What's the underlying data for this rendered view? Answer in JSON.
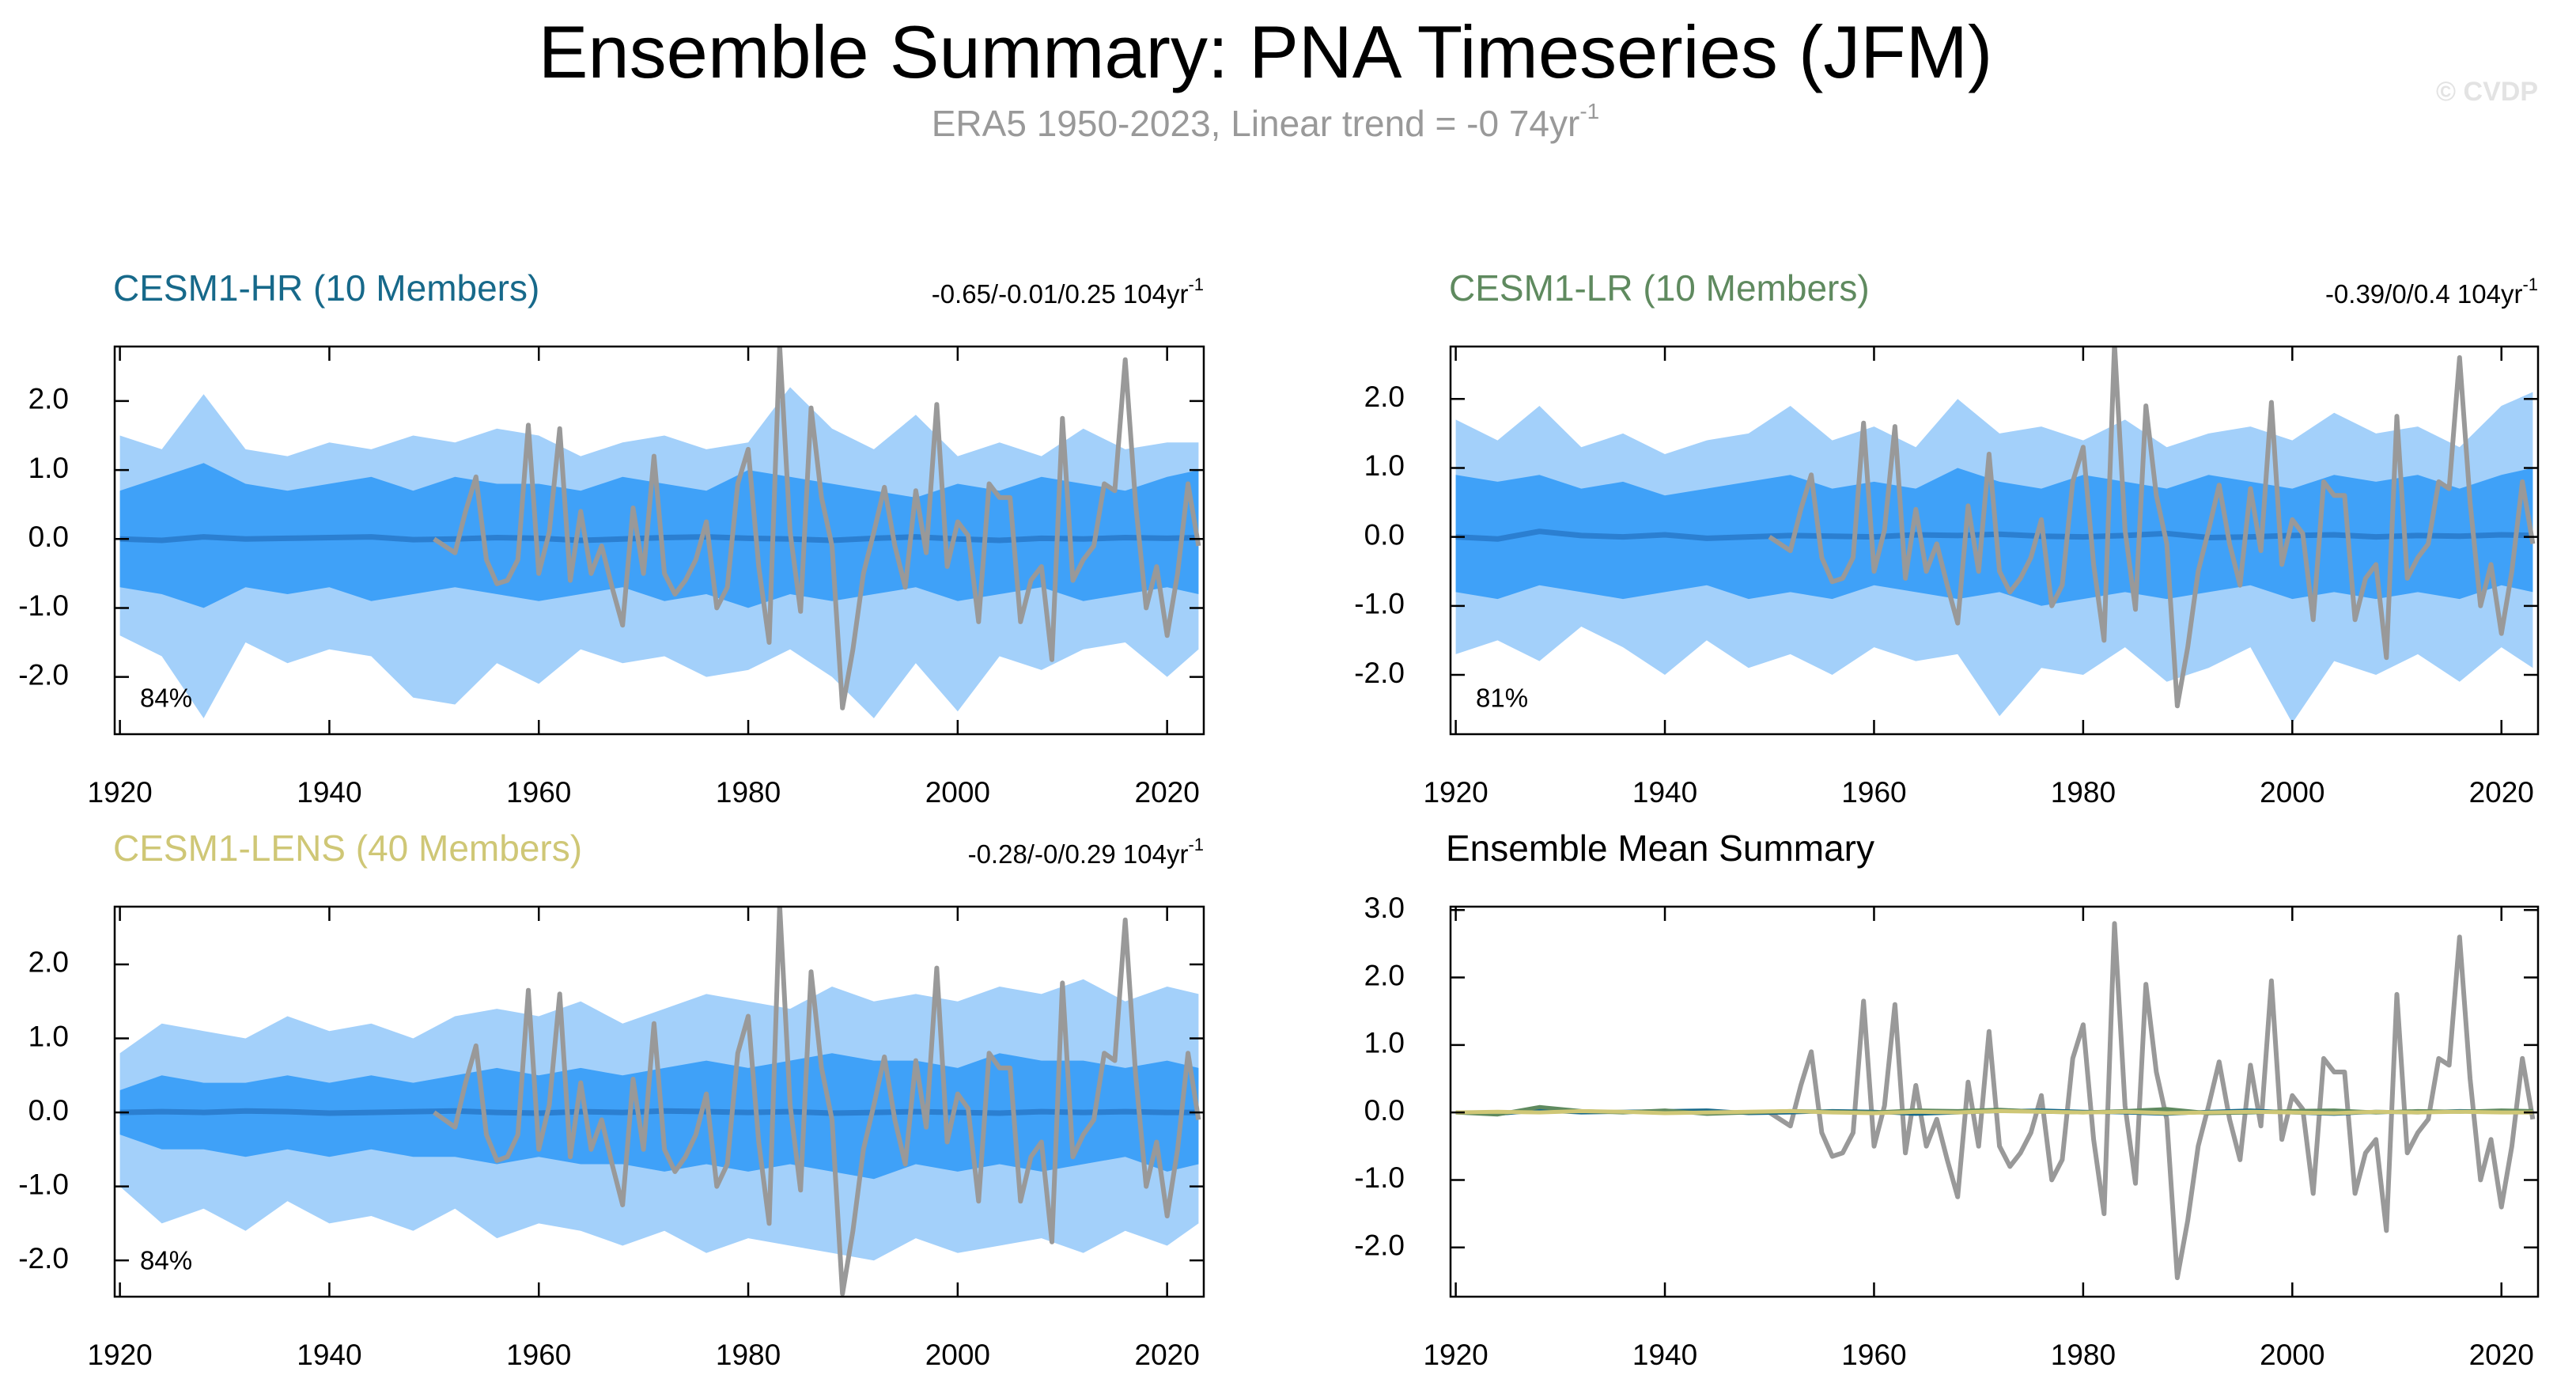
{
  "header": {
    "title": "Ensemble Summary: PNA Timeseries (JFM)",
    "subtitle": "ERA5 1950-2023, Linear trend = -0 74yr",
    "subtitle_exponent": "-1",
    "watermark": "© CVDP"
  },
  "style": {
    "outer": "#a3d0fa",
    "inner": "#3fa1f8",
    "mean": "#2b7fd1",
    "observations": "#999999"
  },
  "observations": {
    "x": [
      1950,
      1951,
      1952,
      1953,
      1954,
      1955,
      1956,
      1957,
      1958,
      1959,
      1960,
      1961,
      1962,
      1963,
      1964,
      1965,
      1966,
      1967,
      1968,
      1969,
      1970,
      1971,
      1972,
      1973,
      1974,
      1975,
      1976,
      1977,
      1978,
      1979,
      1980,
      1981,
      1982,
      1983,
      1984,
      1985,
      1986,
      1987,
      1988,
      1989,
      1990,
      1991,
      1992,
      1993,
      1994,
      1995,
      1996,
      1997,
      1998,
      1999,
      2000,
      2001,
      2002,
      2003,
      2004,
      2005,
      2006,
      2007,
      2008,
      2009,
      2010,
      2011,
      2012,
      2013,
      2014,
      2015,
      2016,
      2017,
      2018,
      2019,
      2020,
      2021,
      2022,
      2023
    ],
    "values": [
      0,
      -0.1,
      -0.2,
      0.4,
      0.9,
      -0.3,
      -0.65,
      -0.6,
      -0.3,
      1.65,
      -0.5,
      0.1,
      1.6,
      -0.6,
      0.4,
      -0.5,
      -0.1,
      -0.7,
      -1.25,
      0.45,
      -0.5,
      1.2,
      -0.5,
      -0.8,
      -0.6,
      -0.3,
      0.25,
      -1.0,
      -0.7,
      0.8,
      1.3,
      -0.4,
      -1.5,
      2.8,
      0.1,
      -1.05,
      1.9,
      0.6,
      -0.1,
      -2.45,
      -1.6,
      -0.5,
      0.1,
      0.75,
      -0.1,
      -0.7,
      0.7,
      -0.2,
      1.95,
      -0.4,
      0.25,
      0.05,
      -1.2,
      0.8,
      0.6,
      0.6,
      -1.2,
      -0.6,
      -0.4,
      -1.75,
      1.75,
      -0.6,
      -0.3,
      -0.1,
      0.8,
      0.7,
      2.6,
      0.5,
      -1.0,
      -0.4,
      -1.4,
      -0.5,
      0.8,
      -0.1
    ]
  },
  "chart_data": [
    {
      "type": "band",
      "title": "CESM1-HR (10 Members)",
      "title_color": "#17698a",
      "trend": "-0.65/-0.01/0.25 104yr",
      "trend_exponent": "-1",
      "percent_label": "84%",
      "x": [
        1920,
        1924,
        1928,
        1932,
        1936,
        1940,
        1944,
        1948,
        1952,
        1956,
        1960,
        1964,
        1968,
        1972,
        1976,
        1980,
        1984,
        1988,
        1992,
        1996,
        2000,
        2004,
        2008,
        2012,
        2016,
        2020,
        2023
      ],
      "max": [
        1.5,
        1.3,
        2.1,
        1.3,
        1.2,
        1.4,
        1.3,
        1.5,
        1.4,
        1.6,
        1.5,
        1.2,
        1.4,
        1.5,
        1.3,
        1.4,
        2.2,
        1.6,
        1.3,
        1.8,
        1.2,
        1.4,
        1.2,
        1.6,
        1.3,
        1.4,
        1.4
      ],
      "min": [
        -1.4,
        -1.7,
        -2.6,
        -1.5,
        -1.8,
        -1.6,
        -1.7,
        -2.3,
        -2.4,
        -1.8,
        -2.1,
        -1.6,
        -1.8,
        -1.7,
        -2.0,
        -1.9,
        -1.6,
        -2.0,
        -2.6,
        -1.8,
        -2.5,
        -1.7,
        -1.9,
        -1.6,
        -1.5,
        -2.0,
        -1.6
      ],
      "p90": [
        0.7,
        0.9,
        1.1,
        0.8,
        0.7,
        0.8,
        0.9,
        0.7,
        0.9,
        0.8,
        0.8,
        0.7,
        0.9,
        0.8,
        0.7,
        1.0,
        0.9,
        0.8,
        0.7,
        0.6,
        0.8,
        0.7,
        0.9,
        0.8,
        0.7,
        0.9,
        1.0
      ],
      "p10": [
        -0.7,
        -0.8,
        -1.0,
        -0.7,
        -0.8,
        -0.7,
        -0.9,
        -0.8,
        -0.7,
        -0.8,
        -0.9,
        -0.8,
        -0.7,
        -0.9,
        -0.8,
        -1.0,
        -0.8,
        -0.9,
        -0.8,
        -0.7,
        -0.9,
        -0.8,
        -0.7,
        -0.9,
        -0.8,
        -0.7,
        -0.8
      ],
      "mean": [
        0,
        -0.02,
        0.03,
        0,
        0.01,
        0.02,
        0.03,
        -0.01,
        0,
        0.02,
        0.01,
        -0.02,
        0,
        0.02,
        0.03,
        0.01,
        0,
        -0.02,
        0.01,
        0.03,
        0,
        -0.02,
        0.01,
        0,
        0.02,
        0.01,
        0.02
      ],
      "xlim": [
        1919.5,
        2023.5
      ],
      "xticks": [
        1920,
        1940,
        1960,
        1980,
        2000,
        2020
      ],
      "ylim": [
        -2.83,
        2.79
      ],
      "yticks": [
        {
          "value": -2,
          "label": "-2.0"
        },
        {
          "value": -1,
          "label": "-1.0"
        },
        {
          "value": 0,
          "label": "0.0"
        },
        {
          "value": 1,
          "label": "1.0"
        },
        {
          "value": 2,
          "label": "2.0"
        }
      ]
    },
    {
      "type": "band",
      "title": "CESM1-LR (10 Members)",
      "title_color": "#5f8a5f",
      "trend": "-0.39/0/0.4 104yr",
      "trend_exponent": "-1",
      "percent_label": "81%",
      "x": [
        1920,
        1924,
        1928,
        1932,
        1936,
        1940,
        1944,
        1948,
        1952,
        1956,
        1960,
        1964,
        1968,
        1972,
        1976,
        1980,
        1984,
        1988,
        1992,
        1996,
        2000,
        2004,
        2008,
        2012,
        2016,
        2020,
        2023
      ],
      "max": [
        1.7,
        1.4,
        1.9,
        1.3,
        1.5,
        1.2,
        1.4,
        1.5,
        1.9,
        1.4,
        1.6,
        1.3,
        2.0,
        1.5,
        1.6,
        1.4,
        1.7,
        1.3,
        1.5,
        1.6,
        1.4,
        1.8,
        1.5,
        1.6,
        1.3,
        1.9,
        2.1
      ],
      "min": [
        -1.7,
        -1.5,
        -1.8,
        -1.3,
        -1.6,
        -2.0,
        -1.5,
        -1.9,
        -1.7,
        -2.0,
        -1.6,
        -1.8,
        -1.7,
        -2.6,
        -1.9,
        -2.0,
        -1.6,
        -2.1,
        -1.9,
        -1.6,
        -2.7,
        -1.8,
        -2.0,
        -1.7,
        -2.1,
        -1.6,
        -1.9
      ],
      "p90": [
        0.9,
        0.8,
        0.9,
        0.7,
        0.8,
        0.6,
        0.7,
        0.8,
        0.9,
        0.7,
        0.8,
        0.7,
        1.0,
        0.8,
        0.7,
        0.9,
        0.8,
        0.7,
        0.9,
        0.8,
        0.7,
        0.9,
        0.8,
        0.9,
        0.7,
        0.9,
        1.0
      ],
      "p10": [
        -0.8,
        -0.9,
        -0.7,
        -0.8,
        -0.9,
        -0.8,
        -0.7,
        -0.9,
        -0.8,
        -0.9,
        -0.7,
        -0.8,
        -0.9,
        -0.8,
        -1.0,
        -0.9,
        -0.8,
        -0.9,
        -0.8,
        -0.7,
        -0.9,
        -0.8,
        -0.9,
        -0.8,
        -0.9,
        -0.7,
        -0.8
      ],
      "mean": [
        0,
        -0.03,
        0.08,
        0.02,
        0,
        0.03,
        -0.02,
        0,
        0.02,
        0.01,
        0,
        0.03,
        0.02,
        0.04,
        0.01,
        0,
        0.02,
        0.05,
        -0.01,
        0,
        0.02,
        0.03,
        0,
        0.02,
        0.01,
        0.03,
        0.02
      ],
      "xlim": [
        1919.5,
        2023.5
      ],
      "xticks": [
        1920,
        1940,
        1960,
        1980,
        2000,
        2020
      ],
      "ylim": [
        -2.86,
        2.76
      ],
      "yticks": [
        {
          "value": -2,
          "label": "-2.0"
        },
        {
          "value": -1,
          "label": "-1.0"
        },
        {
          "value": 0,
          "label": "0.0"
        },
        {
          "value": 1,
          "label": "1.0"
        },
        {
          "value": 2,
          "label": "2.0"
        }
      ]
    },
    {
      "type": "band",
      "title": "CESM1-LENS (40 Members)",
      "title_color": "#cfc776",
      "trend": "-0.28/-0/0.29 104yr",
      "trend_exponent": "-1",
      "percent_label": "84%",
      "x": [
        1920,
        1924,
        1928,
        1932,
        1936,
        1940,
        1944,
        1948,
        1952,
        1956,
        1960,
        1964,
        1968,
        1972,
        1976,
        1980,
        1984,
        1988,
        1992,
        1996,
        2000,
        2004,
        2008,
        2012,
        2016,
        2020,
        2023
      ],
      "max": [
        0.8,
        1.2,
        1.1,
        1.0,
        1.3,
        1.1,
        1.2,
        1.0,
        1.3,
        1.4,
        1.3,
        1.5,
        1.2,
        1.4,
        1.6,
        1.5,
        1.4,
        1.7,
        1.5,
        1.6,
        1.5,
        1.7,
        1.6,
        1.8,
        1.5,
        1.7,
        1.6
      ],
      "min": [
        -1.0,
        -1.5,
        -1.3,
        -1.6,
        -1.2,
        -1.5,
        -1.4,
        -1.6,
        -1.3,
        -1.7,
        -1.5,
        -1.6,
        -1.8,
        -1.6,
        -1.9,
        -1.7,
        -1.8,
        -1.9,
        -2.0,
        -1.7,
        -1.9,
        -1.8,
        -1.7,
        -1.9,
        -1.6,
        -1.8,
        -1.5
      ],
      "p90": [
        0.3,
        0.5,
        0.4,
        0.4,
        0.5,
        0.4,
        0.5,
        0.4,
        0.5,
        0.6,
        0.5,
        0.6,
        0.5,
        0.6,
        0.7,
        0.6,
        0.7,
        0.8,
        0.7,
        0.7,
        0.6,
        0.8,
        0.7,
        0.7,
        0.6,
        0.7,
        0.6
      ],
      "p10": [
        -0.3,
        -0.5,
        -0.5,
        -0.6,
        -0.5,
        -0.6,
        -0.5,
        -0.6,
        -0.6,
        -0.7,
        -0.6,
        -0.7,
        -0.7,
        -0.8,
        -0.7,
        -0.8,
        -0.7,
        -0.8,
        -0.9,
        -0.7,
        -0.8,
        -0.7,
        -0.8,
        -0.7,
        -0.6,
        -0.8,
        -0.7
      ],
      "mean": [
        0,
        0.01,
        0,
        0.02,
        0.01,
        -0.01,
        0,
        0.01,
        0.02,
        0,
        -0.01,
        0.01,
        0,
        0.02,
        0.01,
        0,
        0.01,
        -0.01,
        0,
        0.01,
        0,
        -0.01,
        0.01,
        0,
        0.01,
        0,
        0
      ],
      "xlim": [
        1919.5,
        2023.5
      ],
      "xticks": [
        1920,
        1940,
        1960,
        1980,
        2000,
        2020
      ],
      "ylim": [
        -2.49,
        2.78
      ],
      "yticks": [
        {
          "value": -2,
          "label": "-2.0"
        },
        {
          "value": -1,
          "label": "-1.0"
        },
        {
          "value": 0,
          "label": "0.0"
        },
        {
          "value": 1,
          "label": "1.0"
        },
        {
          "value": 2,
          "label": "2.0"
        }
      ]
    },
    {
      "type": "summary",
      "title": "Ensemble Mean Summary",
      "xlim": [
        1919.5,
        2023.5
      ],
      "xticks": [
        1920,
        1940,
        1960,
        1980,
        2000,
        2020
      ],
      "ylim": [
        -2.73,
        3.05
      ],
      "yticks": [
        {
          "value": -2,
          "label": "-2.0"
        },
        {
          "value": -1,
          "label": "-1.0"
        },
        {
          "value": 0,
          "label": "0.0"
        },
        {
          "value": 1,
          "label": "1.0"
        },
        {
          "value": 2,
          "label": "2.0"
        },
        {
          "value": 3,
          "label": "3.0"
        }
      ]
    }
  ]
}
